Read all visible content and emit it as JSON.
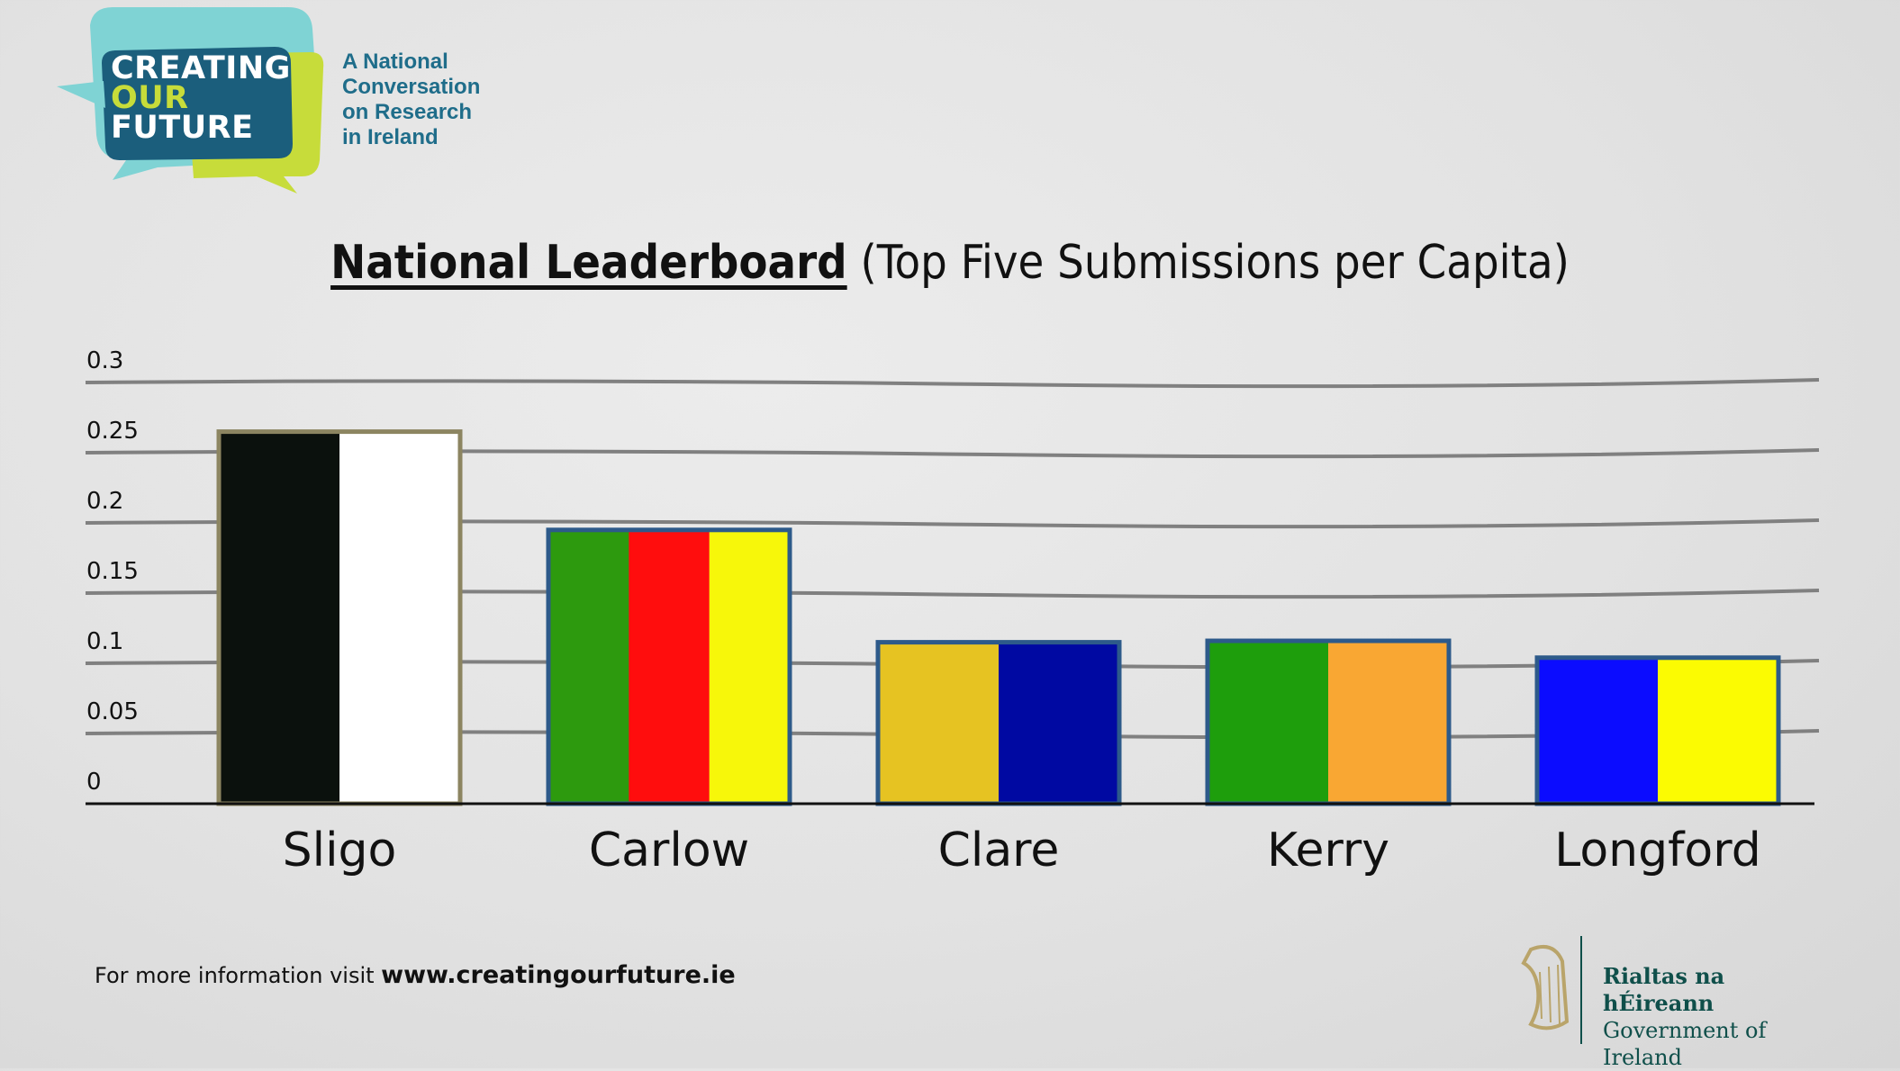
{
  "logo": {
    "bubble_lines": [
      "CREATING",
      "OUR",
      "FUTURE"
    ],
    "tagline_lines": [
      "A National",
      "Conversation",
      "on Research",
      "in Ireland"
    ],
    "colors": {
      "bubble_back": "#7fd3d4",
      "bubble_front": "#1b5e7c",
      "bubble_lime": "#c7dc3a",
      "our": "#c7dc3a",
      "text": "#ffffff"
    }
  },
  "title": {
    "bold": "National Leaderboard",
    "rest": "(Top Five Submissions per Capita)"
  },
  "chart_data": {
    "type": "bar",
    "categories": [
      "Sligo",
      "Carlow",
      "Clare",
      "Kerry",
      "Longford"
    ],
    "values": [
      0.265,
      0.195,
      0.115,
      0.116,
      0.104
    ],
    "ylim": [
      0,
      0.3
    ],
    "yticks": [
      "0",
      "0.05",
      "0.1",
      "0.15",
      "0.2",
      "0.25",
      "0.3"
    ],
    "ytick_values": [
      0,
      0.05,
      0.1,
      0.15,
      0.2,
      0.25,
      0.3
    ],
    "grid": true,
    "bar_stripes": [
      [
        "#0b110d",
        "#ffffff"
      ],
      [
        "#2d9a0e",
        "#ff0d0d",
        "#f7f70a"
      ],
      [
        "#e6c322",
        "#0009a2"
      ],
      [
        "#1e9e0c",
        "#f9a733"
      ],
      [
        "#0b0cff",
        "#fbfb02"
      ]
    ],
    "bar_outline": [
      "#8c8561",
      "#2d5a8a",
      "#2d5a8a",
      "#2d5a8a",
      "#2d5a8a"
    ]
  },
  "footer": {
    "prefix": "For more information visit",
    "url": "www.creatingourfuture.ie"
  },
  "government": {
    "irish": "Rialtas na hÉireann",
    "english": "Government of Ireland"
  }
}
